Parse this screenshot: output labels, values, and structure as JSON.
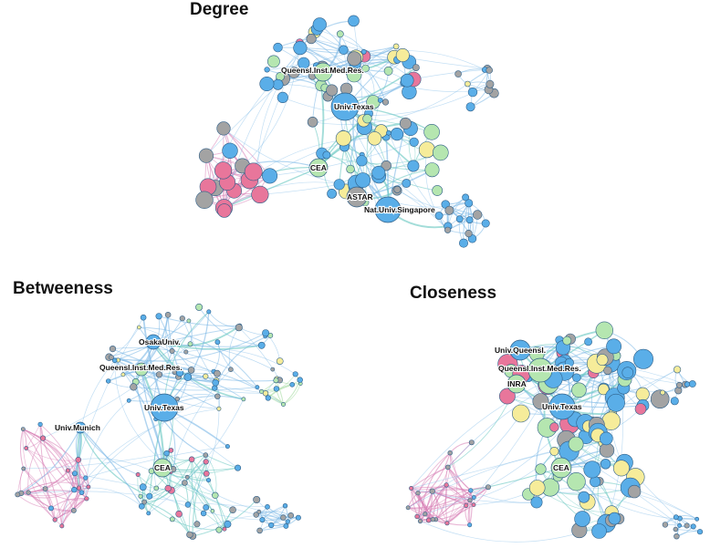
{
  "panels": [
    {
      "id": "degree",
      "title": "Degree",
      "labels": [
        {
          "text": "Queensl.Inst.Med.Res.",
          "node": "queensl"
        },
        {
          "text": "Univ.Texas",
          "node": "texas"
        },
        {
          "text": "CEA",
          "node": "cea"
        },
        {
          "text": "ASTAR",
          "node": "astar"
        },
        {
          "text": "Nat.Univ.Singapore",
          "node": "nus"
        }
      ]
    },
    {
      "id": "betweeness",
      "title": "Betweeness",
      "labels": [
        {
          "text": "OsakaUniv.",
          "node": "osaka"
        },
        {
          "text": "Queensl.Inst.Med.Res.",
          "node": "queensl"
        },
        {
          "text": "Univ.Texas",
          "node": "texas"
        },
        {
          "text": "Univ.Munich",
          "node": "munich"
        },
        {
          "text": "CEA",
          "node": "cea"
        }
      ]
    },
    {
      "id": "closeness",
      "title": "Closeness",
      "labels": [
        {
          "text": "Univ.Queensl.",
          "node": "uq"
        },
        {
          "text": "Queensl.Inst.Med.Res.",
          "node": "queensl"
        },
        {
          "text": "INRA",
          "node": "inra"
        },
        {
          "text": "Univ.Texas",
          "node": "texas"
        },
        {
          "text": "CEA",
          "node": "cea"
        }
      ]
    }
  ],
  "colors": {
    "blue": "#5aaee8",
    "pink": "#e8769b",
    "green": "#b5e6b0",
    "gray": "#a3a3a3",
    "yellow": "#f6ec9a",
    "stroke": "#2f5f88",
    "edge_blue": "#7bb8e6",
    "edge_teal": "#66c7c0",
    "edge_pink": "#d77db4",
    "edge_green": "#9fd89a"
  }
}
